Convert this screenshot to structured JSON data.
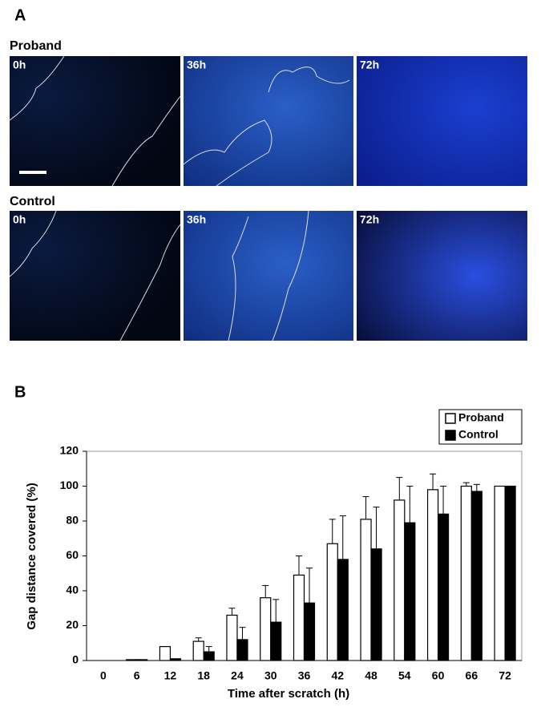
{
  "panel_a": {
    "label": "A",
    "rows": [
      {
        "label": "Proband",
        "images": [
          "0h",
          "36h",
          "72h"
        ]
      },
      {
        "label": "Control",
        "images": [
          "0h",
          "36h",
          "72h"
        ]
      }
    ]
  },
  "chart_data": {
    "type": "bar",
    "panel_label": "B",
    "x_label": "Time after scratch (h)",
    "y_label": "Gap distance covered (%)",
    "categories": [
      "0",
      "6",
      "12",
      "18",
      "24",
      "30",
      "36",
      "42",
      "48",
      "54",
      "60",
      "66",
      "72"
    ],
    "series": [
      {
        "name": "Proband",
        "color": "#ffffff",
        "values": [
          0,
          0.5,
          8,
          11,
          26,
          36,
          49,
          67,
          81,
          92,
          98,
          100,
          100
        ],
        "errors": [
          0,
          0,
          0,
          2,
          4,
          7,
          11,
          14,
          13,
          13,
          9,
          2,
          0
        ]
      },
      {
        "name": "Control",
        "color": "#000000",
        "values": [
          0,
          0.5,
          1,
          5,
          12,
          22,
          33,
          58,
          64,
          79,
          84,
          97,
          100
        ],
        "errors": [
          0,
          0,
          0,
          3,
          7,
          13,
          20,
          25,
          24,
          21,
          16,
          4,
          0
        ]
      }
    ],
    "ylim": [
      0,
      120
    ],
    "yticks": [
      0,
      20,
      40,
      60,
      80,
      100,
      120
    ],
    "legend": "upper right"
  }
}
